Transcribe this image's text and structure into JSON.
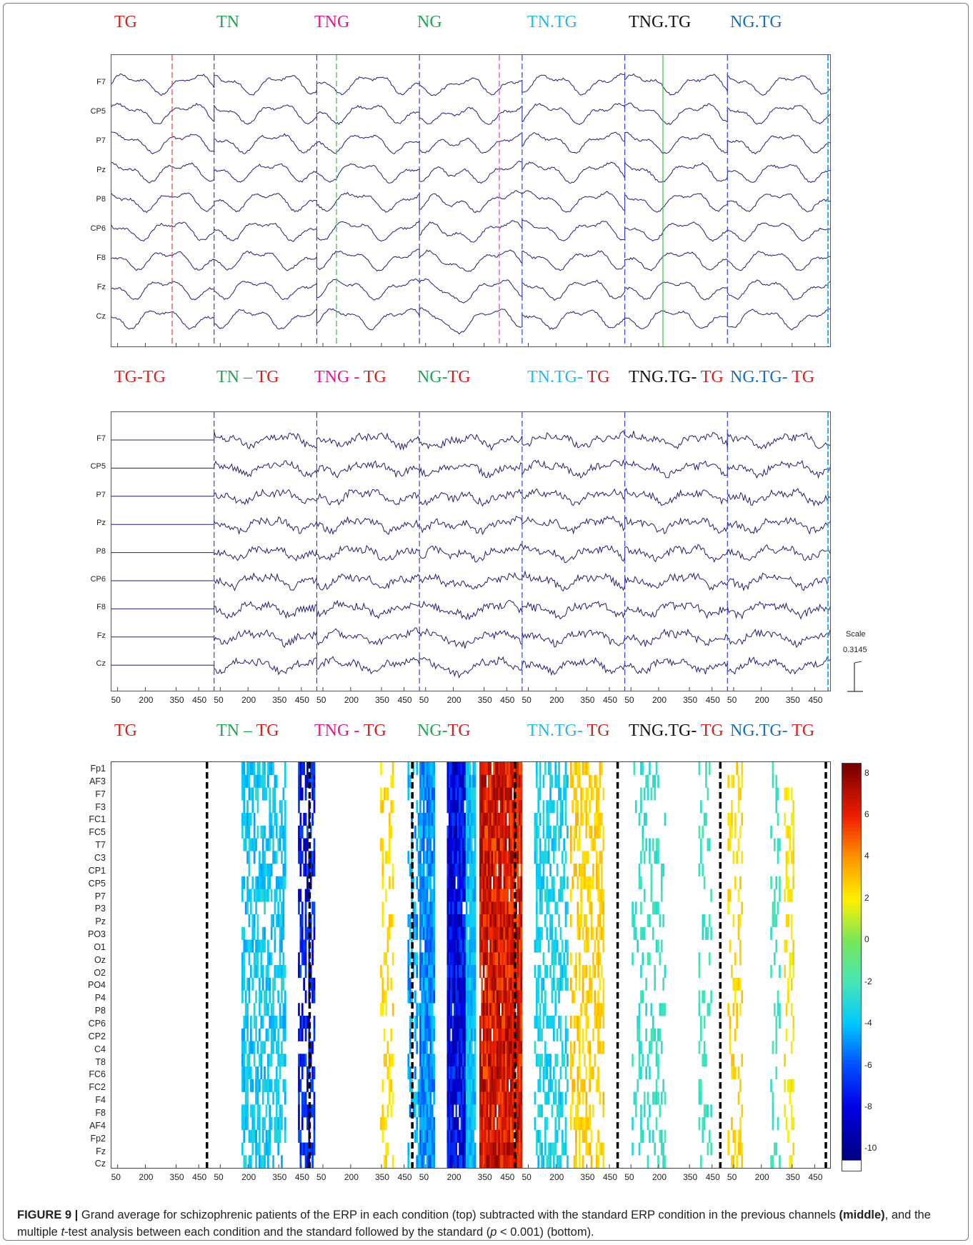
{
  "panels": {
    "top": {
      "conditions": [
        {
          "text": "TG",
          "color": "#d42020"
        },
        {
          "text": "TN",
          "color": "#22a355"
        },
        {
          "text": "TNG",
          "color": "#e0188c"
        },
        {
          "text": "NG",
          "color": "#22a355"
        },
        {
          "text": "TN.TG",
          "color": "#2bb5e0"
        },
        {
          "text": "TNG.TG",
          "color": "#111111"
        },
        {
          "text": "NG.TG",
          "color": "#1b6fb8"
        }
      ],
      "channels": [
        "F7",
        "CP5",
        "P7",
        "Pz",
        "P8",
        "CP6",
        "F8",
        "Fz",
        "Cz"
      ]
    },
    "middle": {
      "conditions": [
        {
          "parts": [
            {
              "text": "TG-TG",
              "color": "#d42020"
            }
          ]
        },
        {
          "parts": [
            {
              "text": "TN – ",
              "color": "#22a355"
            },
            {
              "text": "TG",
              "color": "#d42020"
            }
          ]
        },
        {
          "parts": [
            {
              "text": "TNG - ",
              "color": "#e0188c"
            },
            {
              "text": "TG",
              "color": "#d42020"
            }
          ]
        },
        {
          "parts": [
            {
              "text": "NG-",
              "color": "#22a355"
            },
            {
              "text": "TG",
              "color": "#d42020"
            }
          ]
        },
        {
          "parts": [
            {
              "text": "TN.TG- ",
              "color": "#2bb5e0"
            },
            {
              "text": "TG",
              "color": "#d42020"
            }
          ]
        },
        {
          "parts": [
            {
              "text": "TNG.TG- ",
              "color": "#111111"
            },
            {
              "text": "TG",
              "color": "#d42020"
            }
          ]
        },
        {
          "parts": [
            {
              "text": "NG.TG- ",
              "color": "#1b6fb8"
            },
            {
              "text": "TG",
              "color": "#d42020"
            }
          ]
        }
      ],
      "channels": [
        "F7",
        "CP5",
        "P7",
        "Pz",
        "P8",
        "CP6",
        "F8",
        "Fz",
        "Cz"
      ],
      "x_ticks": [
        "50",
        "200",
        "350",
        "450"
      ],
      "scale_title": "Scale",
      "scale_value": "0.3145"
    },
    "bottom": {
      "conditions": [
        {
          "parts": [
            {
              "text": "TG",
              "color": "#d42020"
            }
          ]
        },
        {
          "parts": [
            {
              "text": "TN – ",
              "color": "#22a355"
            },
            {
              "text": "TG",
              "color": "#d42020"
            }
          ]
        },
        {
          "parts": [
            {
              "text": "TNG - ",
              "color": "#e0188c"
            },
            {
              "text": "TG",
              "color": "#d42020"
            }
          ]
        },
        {
          "parts": [
            {
              "text": "NG-",
              "color": "#22a355"
            },
            {
              "text": "TG",
              "color": "#d42020"
            }
          ]
        },
        {
          "parts": [
            {
              "text": "TN.TG- ",
              "color": "#2bb5e0"
            },
            {
              "text": "TG",
              "color": "#d42020"
            }
          ]
        },
        {
          "parts": [
            {
              "text": "TNG.TG- ",
              "color": "#111111"
            },
            {
              "text": "TG",
              "color": "#d42020"
            }
          ]
        },
        {
          "parts": [
            {
              "text": "NG.TG- ",
              "color": "#1b6fb8"
            },
            {
              "text": "TG",
              "color": "#d42020"
            }
          ]
        }
      ],
      "channels": [
        "Fp1",
        "AF3",
        "F7",
        "F3",
        "FC1",
        "FC5",
        "T7",
        "C3",
        "CP1",
        "CP5",
        "P7",
        "P3",
        "Pz",
        "PO3",
        "O1",
        "Oz",
        "O2",
        "PO4",
        "P4",
        "P8",
        "CP6",
        "CP2",
        "C4",
        "T8",
        "FC6",
        "FC2",
        "F4",
        "F8",
        "AF4",
        "Fp2",
        "Fz",
        "Cz"
      ],
      "x_ticks": [
        "50",
        "200",
        "350",
        "450"
      ],
      "colorbar_ticks": [
        "8",
        "6",
        "4",
        "2",
        "0",
        "-2",
        "-4",
        "-6",
        "-8",
        "-10"
      ],
      "colorbar_range": [
        -10.5,
        8.5
      ]
    }
  },
  "caption": {
    "label": "FIGURE 9 |",
    "text1": " Grand average for schizophrenic patients of the ERP in each condition (top) subtracted with the standard ERP condition in the previous channels ",
    "bold_word": "(middle)",
    "text2": ", and the multiple ",
    "italic_t": "t",
    "text3": "-test analysis between each condition and the standard followed by the standard (",
    "italic_p": "p",
    "text4": " < 0.001) (bottom)."
  },
  "colors": {
    "trace": "#1f1f6e",
    "divider_blue": "#3344dd",
    "marker_red": "#e04040",
    "marker_green": "#30c040",
    "marker_magenta": "#e040c8",
    "marker_cyan": "#40a8f0"
  }
}
